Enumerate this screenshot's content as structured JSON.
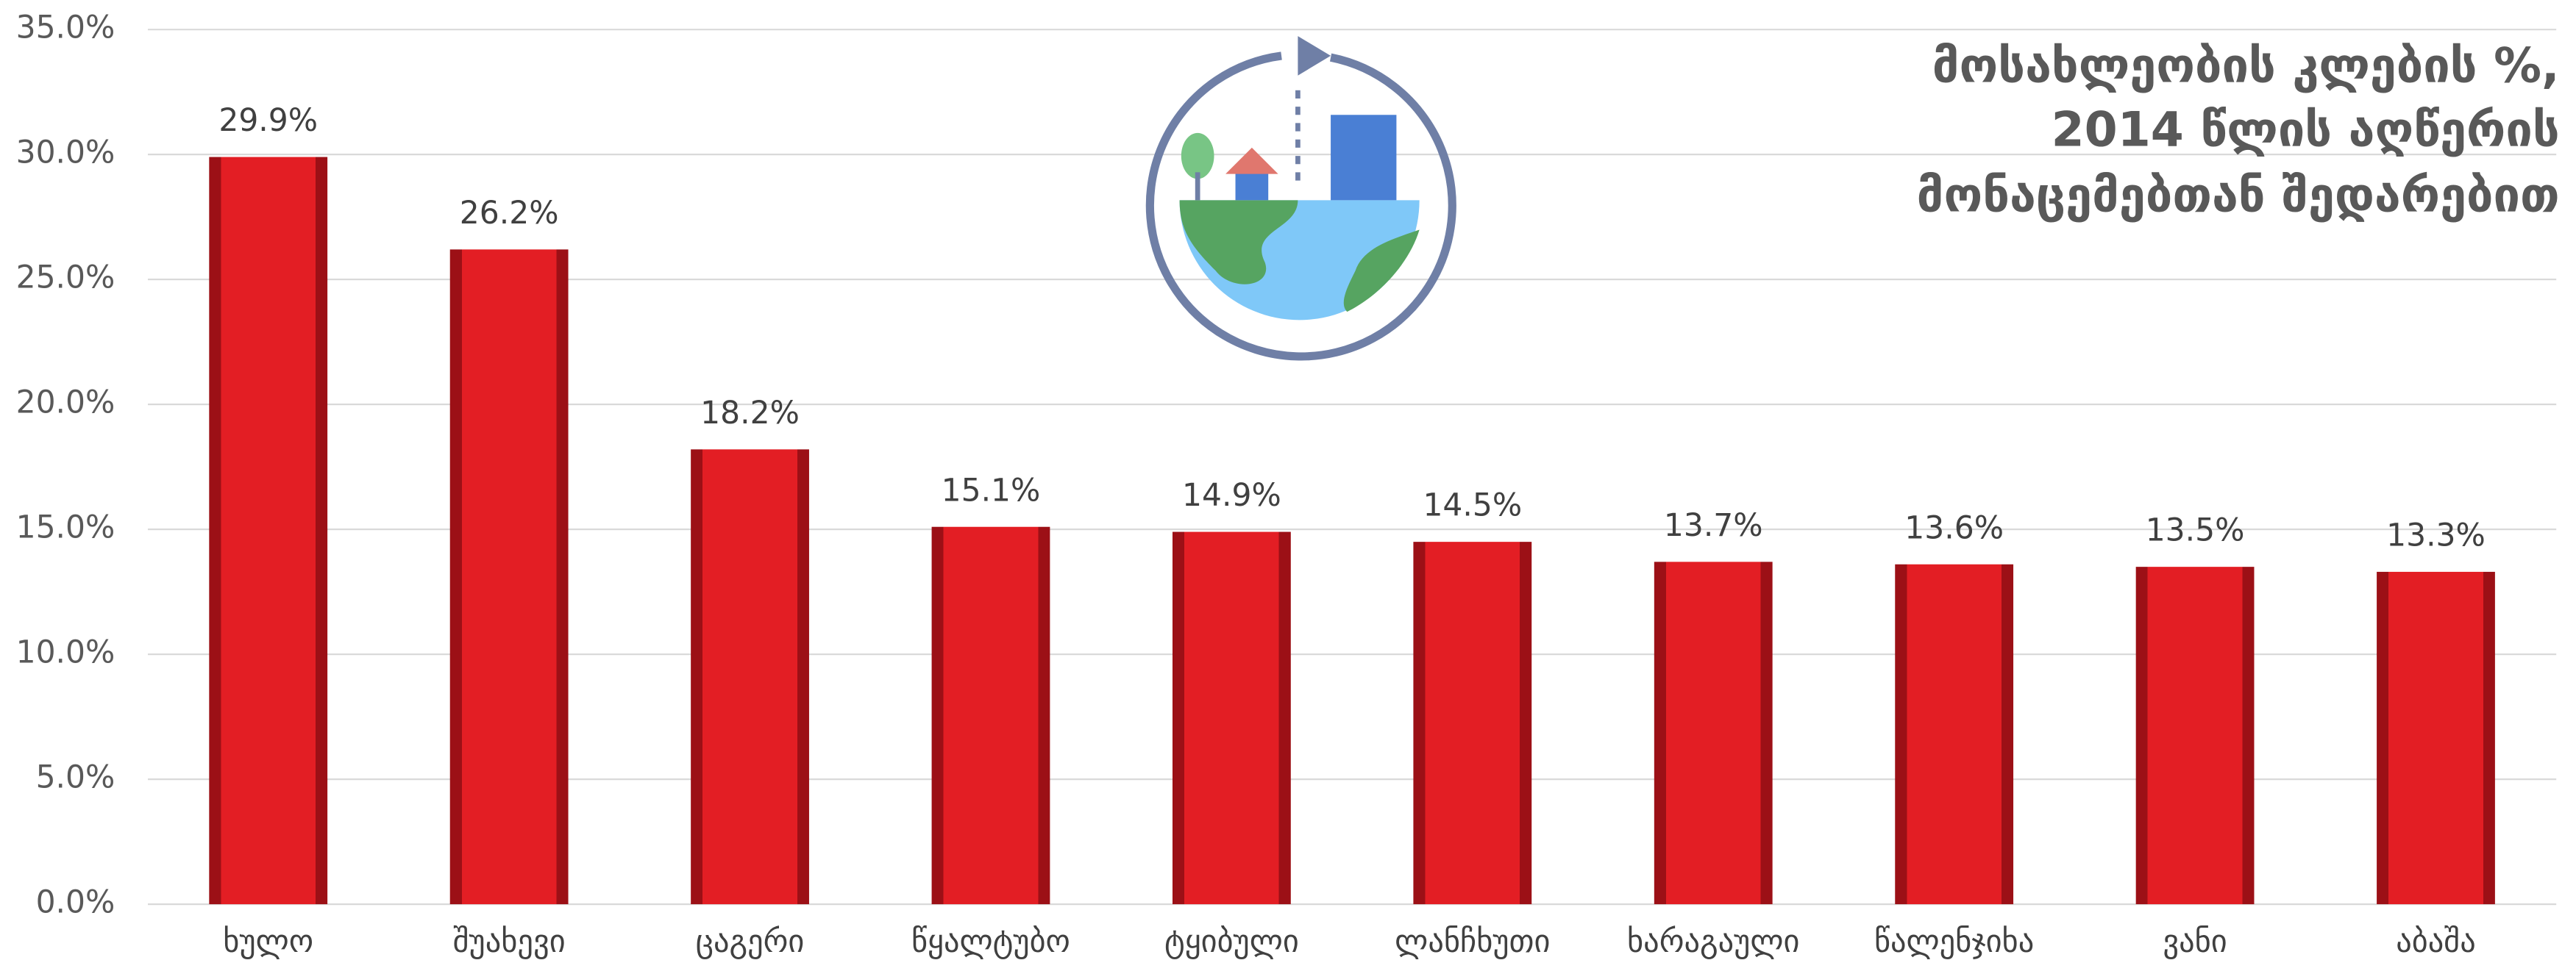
{
  "chart_data": {
    "type": "bar",
    "title": [
      "მოსახლეობის კლების %,",
      "2014 წლის აღწერის",
      "მონაცემებთან შედარებით"
    ],
    "categories": [
      "ხულო",
      "შუახევი",
      "ცაგერი",
      "წყალტუბო",
      "ტყიბული",
      "ლანჩხუთი",
      "ხარაგაული",
      "წალენჯიხა",
      "ვანი",
      "აბაშა"
    ],
    "values": [
      29.9,
      26.2,
      18.2,
      15.1,
      14.9,
      14.5,
      13.7,
      13.6,
      13.5,
      13.3
    ],
    "value_labels": [
      "29.9%",
      "26.2%",
      "18.2%",
      "15.1%",
      "14.9%",
      "14.5%",
      "13.7%",
      "13.6%",
      "13.5%",
      "13.3%"
    ],
    "color": "#e31e24",
    "ylim": [
      0,
      35
    ],
    "yticks": [
      {
        "value": 0,
        "label": "0.0%"
      },
      {
        "value": 5,
        "label": "5.0%"
      },
      {
        "value": 10,
        "label": "10.0%"
      },
      {
        "value": 15,
        "label": "15.0%"
      },
      {
        "value": 20,
        "label": "20.0%"
      },
      {
        "value": 25,
        "label": "25.0%"
      },
      {
        "value": 30,
        "label": "30.0%"
      },
      {
        "value": 35,
        "label": "35.0%"
      }
    ],
    "grid": true
  }
}
